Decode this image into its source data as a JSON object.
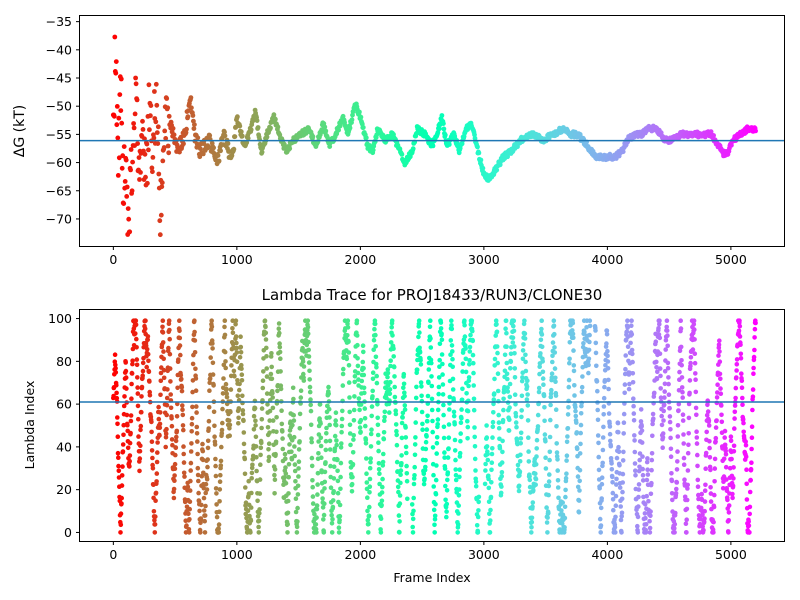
{
  "chart_data": [
    {
      "type": "scatter",
      "title": "",
      "xlabel": "",
      "ylabel": "ΔG (kT)",
      "xlim": [
        -270,
        5430
      ],
      "ylim": [
        -74.8,
        -34.0
      ],
      "xticks": [
        0,
        1000,
        2000,
        3000,
        4000,
        5000
      ],
      "yticks": [
        -70,
        -65,
        -60,
        -55,
        -50,
        -45,
        -40,
        -35
      ],
      "colormap": "rainbow (red at frame 0 → violet at last frame)",
      "reference_line": {
        "y": -56.1,
        "color": "#1f77b4"
      },
      "grid": false,
      "trace_anchors": [
        [
          0,
          -50
        ],
        [
          20,
          -40
        ],
        [
          40,
          -60
        ],
        [
          60,
          -45
        ],
        [
          80,
          -65
        ],
        [
          100,
          -55
        ],
        [
          120,
          -70
        ],
        [
          150,
          -60
        ],
        [
          180,
          -48
        ],
        [
          210,
          -62
        ],
        [
          240,
          -52
        ],
        [
          260,
          -66
        ],
        [
          290,
          -50
        ],
        [
          320,
          -58
        ],
        [
          350,
          -47
        ],
        [
          380,
          -68
        ],
        [
          400,
          -56
        ],
        [
          450,
          -52
        ],
        [
          520,
          -58
        ],
        [
          580,
          -55
        ],
        [
          620,
          -48
        ],
        [
          660,
          -55
        ],
        [
          700,
          -58
        ],
        [
          780,
          -56
        ],
        [
          840,
          -60
        ],
        [
          900,
          -55
        ],
        [
          960,
          -60
        ],
        [
          1000,
          -52
        ],
        [
          1060,
          -57
        ],
        [
          1100,
          -55
        ],
        [
          1150,
          -51
        ],
        [
          1200,
          -58
        ],
        [
          1260,
          -54
        ],
        [
          1300,
          -52
        ],
        [
          1360,
          -56
        ],
        [
          1400,
          -58
        ],
        [
          1460,
          -56
        ],
        [
          1520,
          -55
        ],
        [
          1580,
          -54
        ],
        [
          1640,
          -57
        ],
        [
          1700,
          -53
        ],
        [
          1750,
          -57
        ],
        [
          1800,
          -55
        ],
        [
          1860,
          -52
        ],
        [
          1900,
          -55
        ],
        [
          1960,
          -49.5
        ],
        [
          2000,
          -52
        ],
        [
          2060,
          -57
        ],
        [
          2100,
          -58
        ],
        [
          2140,
          -54
        ],
        [
          2200,
          -56
        ],
        [
          2260,
          -55
        ],
        [
          2300,
          -57
        ],
        [
          2360,
          -60
        ],
        [
          2420,
          -58
        ],
        [
          2460,
          -54
        ],
        [
          2520,
          -55
        ],
        [
          2580,
          -57
        ],
        [
          2620,
          -55
        ],
        [
          2660,
          -52
        ],
        [
          2700,
          -57
        ],
        [
          2760,
          -55
        ],
        [
          2800,
          -58
        ],
        [
          2860,
          -54
        ],
        [
          2900,
          -53
        ],
        [
          2940,
          -57
        ],
        [
          3000,
          -62
        ],
        [
          3040,
          -63
        ],
        [
          3100,
          -61
        ],
        [
          3160,
          -59
        ],
        [
          3220,
          -58
        ],
        [
          3300,
          -56
        ],
        [
          3400,
          -55
        ],
        [
          3480,
          -56
        ],
        [
          3560,
          -55
        ],
        [
          3640,
          -54
        ],
        [
          3700,
          -55
        ],
        [
          3760,
          -55
        ],
        [
          3840,
          -57
        ],
        [
          3900,
          -59
        ],
        [
          3960,
          -59
        ],
        [
          4060,
          -59
        ],
        [
          4120,
          -58
        ],
        [
          4160,
          -56
        ],
        [
          4220,
          -55
        ],
        [
          4280,
          -55
        ],
        [
          4340,
          -54
        ],
        [
          4400,
          -54
        ],
        [
          4460,
          -56
        ],
        [
          4520,
          -56
        ],
        [
          4600,
          -55
        ],
        [
          4680,
          -55
        ],
        [
          4760,
          -55
        ],
        [
          4840,
          -55
        ],
        [
          4900,
          -57
        ],
        [
          4940,
          -58.5
        ],
        [
          4980,
          -58
        ],
        [
          5020,
          -56
        ],
        [
          5080,
          -55
        ],
        [
          5140,
          -54
        ],
        [
          5200,
          -54
        ]
      ]
    },
    {
      "type": "scatter",
      "title": "Lambda Trace for PROJ18433/RUN3/CLONE30",
      "xlabel": "Frame Index",
      "ylabel": "Lambda Index",
      "xlim": [
        -270,
        5430
      ],
      "ylim": [
        -4,
        104
      ],
      "xticks": [
        0,
        1000,
        2000,
        3000,
        4000,
        5000
      ],
      "yticks": [
        0,
        20,
        40,
        60,
        80,
        100
      ],
      "colormap": "rainbow (red at frame 0 → violet at last frame)",
      "reference_line": {
        "y": 61,
        "color": "#1f77b4"
      },
      "grid": false,
      "n_frames": 5200,
      "lambda_range": [
        0,
        99
      ]
    }
  ]
}
